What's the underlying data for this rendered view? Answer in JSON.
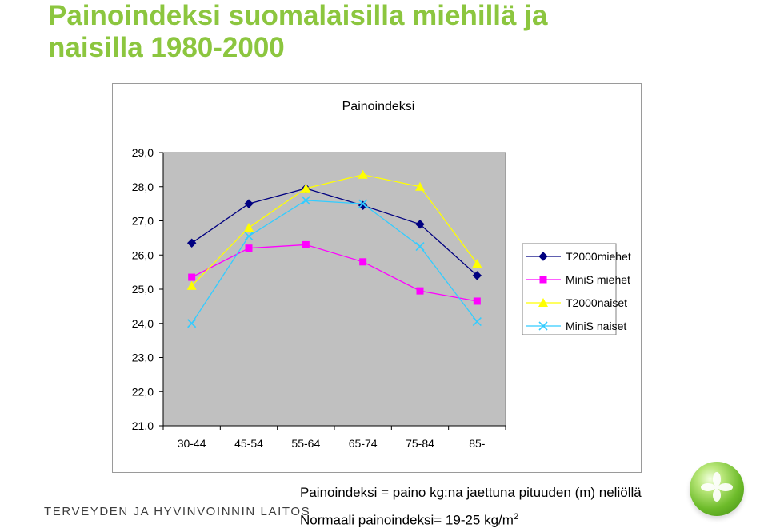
{
  "slide": {
    "title_line1": "Painoindeksi suomalaisilla miehillä ja",
    "title_line2": "naisilla 1980-2000",
    "title_color": "#8cc63f"
  },
  "chart_data": {
    "type": "line",
    "title": "Painoindeksi",
    "categories": [
      "30-44",
      "45-54",
      "55-64",
      "65-74",
      "75-84",
      "85-"
    ],
    "ylim": [
      21,
      29
    ],
    "yticks": [
      21,
      22,
      23,
      24,
      25,
      26,
      27,
      28,
      29
    ],
    "ytick_labels": [
      "21,0",
      "22,0",
      "23,0",
      "24,0",
      "25,0",
      "26,0",
      "27,0",
      "28,0",
      "29,0"
    ],
    "plot_background": "#c0c0c0",
    "grid": false,
    "legend_position": "right",
    "series": [
      {
        "name": "T2000miehet",
        "color": "#000080",
        "marker": "diamond",
        "values": [
          26.35,
          27.5,
          27.95,
          27.45,
          26.9,
          25.4
        ]
      },
      {
        "name": "MiniS miehet",
        "color": "#ff00ff",
        "marker": "square",
        "values": [
          25.35,
          26.2,
          26.3,
          25.8,
          24.95,
          24.65
        ]
      },
      {
        "name": "T2000naiset",
        "color": "#ffff00",
        "marker": "triangle",
        "values": [
          25.1,
          26.8,
          27.95,
          28.35,
          28.0,
          25.75
        ]
      },
      {
        "name": "MiniS naiset",
        "color": "#33ccff",
        "marker": "x",
        "values": [
          24.0,
          26.55,
          27.6,
          27.5,
          26.25,
          24.05
        ]
      }
    ]
  },
  "footer": {
    "org": "TERVEYDEN JA HYVINVOINNIN LAITOS",
    "formula_line1": "Painoindeksi = paino kg:na jaettuna pituuden (m) neliöllä",
    "formula_line2": "Normaali painoindeksi= 19-25 kg/m",
    "formula_line2_sup": "2"
  }
}
